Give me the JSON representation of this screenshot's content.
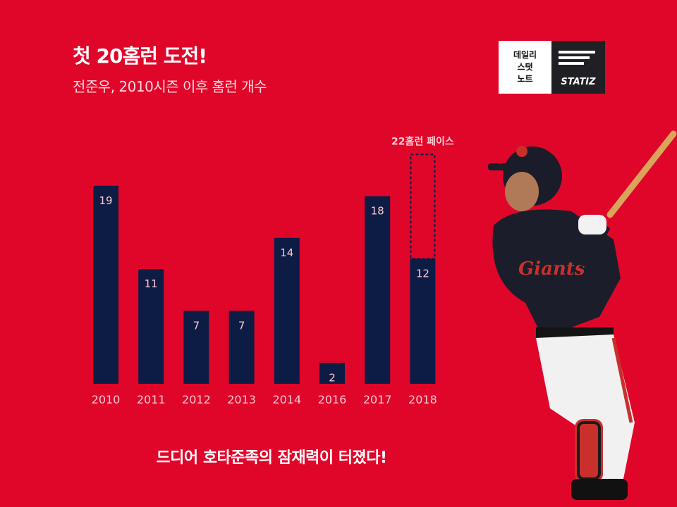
{
  "header": {
    "title": "첫 20홈런 도전!",
    "subtitle": "전준우, 2010시즌 이후 홈런 개수"
  },
  "logo": {
    "line1": "데일리",
    "line2": "스탯",
    "line3": "노트",
    "brand": "STATIZ"
  },
  "caption": "드디어 호타준족의 잠재력이 터졌다!",
  "colors": {
    "background": "#e0062a",
    "bar": "#0d1c45",
    "label_light": "#ffc9d2",
    "projection": "#0d1c45"
  },
  "chart_data": {
    "type": "bar",
    "categories": [
      "2010",
      "2011",
      "2012",
      "2013",
      "2014",
      "2016",
      "2017",
      "2018"
    ],
    "values": [
      19,
      11,
      7,
      7,
      14,
      2,
      18,
      12
    ],
    "projection": {
      "category": "2018",
      "value": 22,
      "label": "22홈런 페이스"
    },
    "ylim": [
      0,
      25
    ],
    "grid": false
  }
}
